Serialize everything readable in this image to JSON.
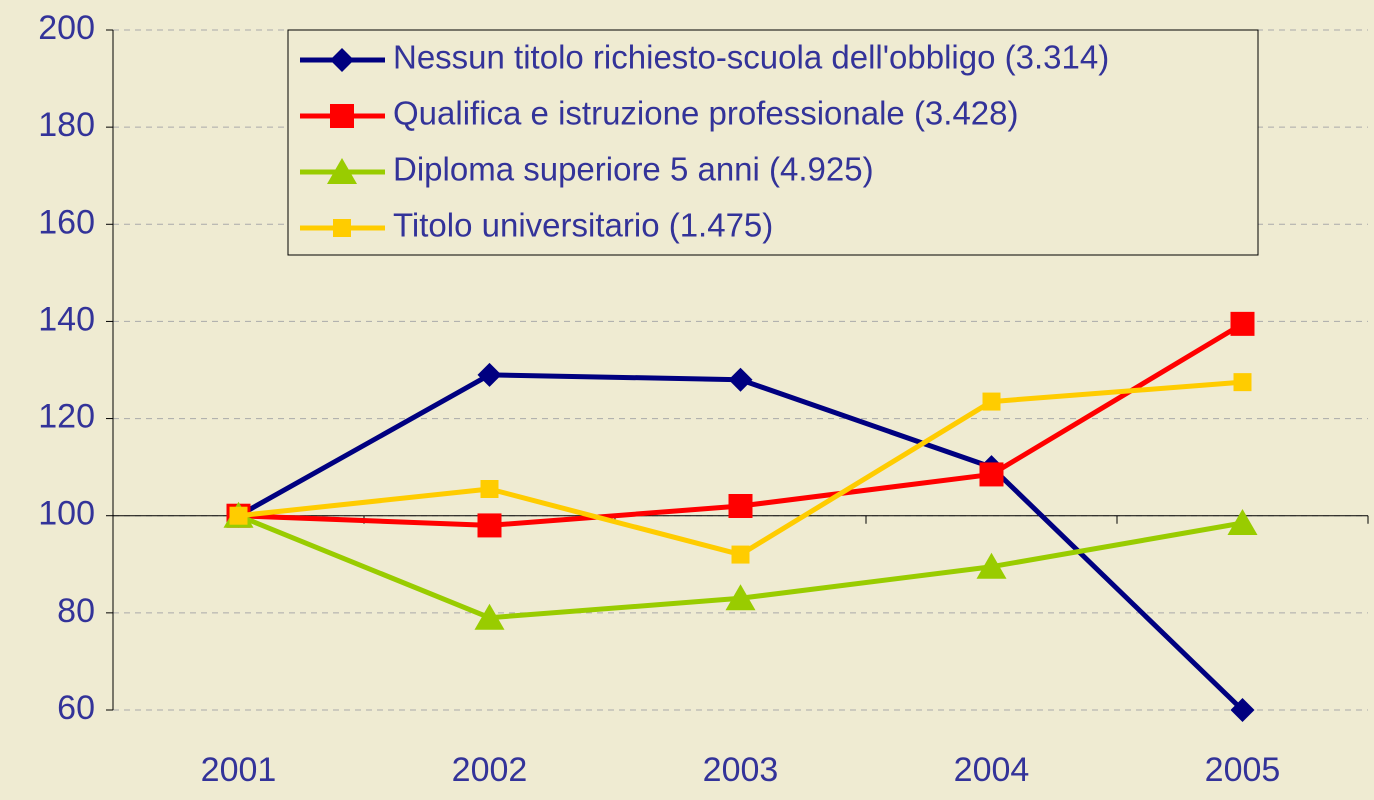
{
  "chart_data": {
    "type": "line",
    "categories": [
      "2001",
      "2002",
      "2003",
      "2004",
      "2005"
    ],
    "series": [
      {
        "name": "Nessun titolo richiesto-scuola dell'obbligo (3.314)",
        "color": "#000080",
        "marker": "diamond",
        "values": [
          100,
          129,
          128,
          110,
          60
        ]
      },
      {
        "name": "Qualifica e istruzione professionale (3.428)",
        "color": "#ff0000",
        "marker": "square",
        "values": [
          100,
          98,
          102,
          108.5,
          139.5
        ]
      },
      {
        "name": "Diploma superiore 5 anni (4.925)",
        "color": "#99cc00",
        "marker": "triangle",
        "values": [
          100,
          79,
          83,
          89.5,
          98.5
        ]
      },
      {
        "name": "Titolo universitario (1.475)",
        "color": "#ffcc00",
        "marker": "small-square",
        "values": [
          100,
          105.5,
          92,
          123.5,
          127.5
        ]
      }
    ],
    "ylim": [
      60,
      200
    ],
    "yticks": [
      60,
      80,
      100,
      120,
      140,
      160,
      180,
      200
    ],
    "x_axis_at": 100,
    "grid": true
  }
}
